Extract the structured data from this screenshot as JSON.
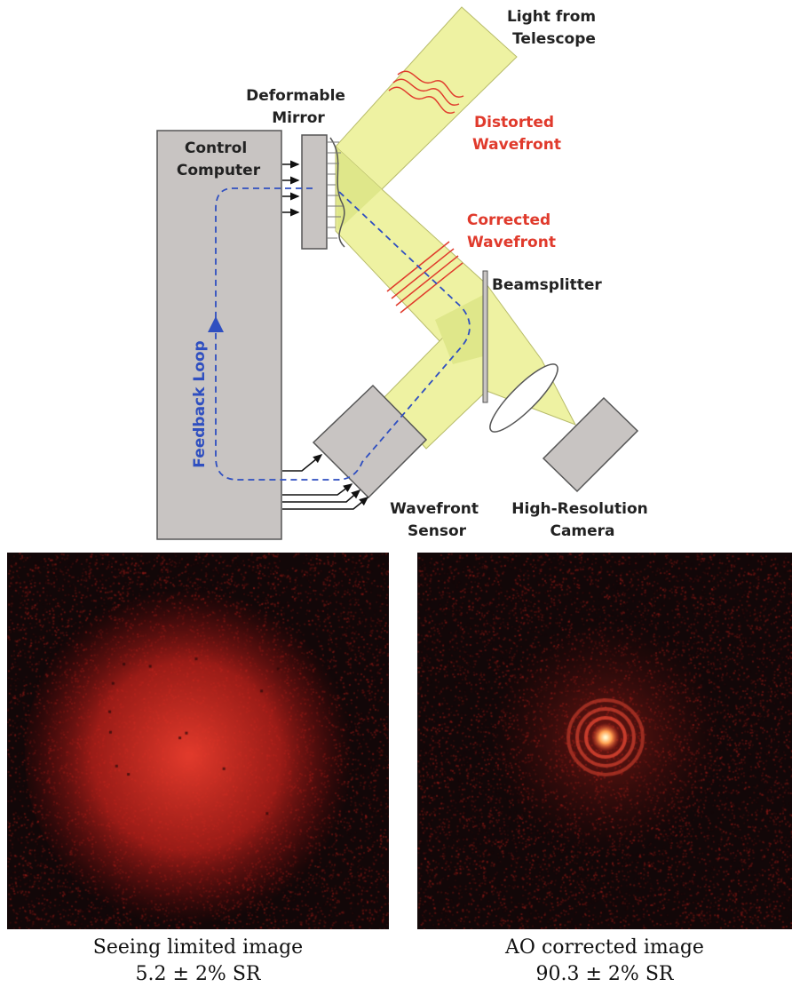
{
  "diagram": {
    "labels": {
      "light_from_telescope": [
        "Light from",
        "Telescope"
      ],
      "deformable_mirror": [
        "Deformable",
        "Mirror"
      ],
      "distorted_wavefront": [
        "Distorted",
        "Wavefront"
      ],
      "control_computer": [
        "Control",
        "Computer"
      ],
      "corrected_wavefront": [
        "Corrected",
        "Wavefront"
      ],
      "beamsplitter": "Beamsplitter",
      "feedback_loop": "Feedback Loop",
      "wavefront_sensor": [
        "Wavefront",
        "Sensor"
      ],
      "high_resolution_camera": [
        "High-Resolution",
        "Camera"
      ]
    },
    "colors": {
      "beam": "#eef2a2",
      "beam_overlap": "#dfe78a",
      "hardware": "#c8c4c2",
      "wavefront_red": "#e03a2c",
      "feedback_blue": "#2f4fc0"
    }
  },
  "images": {
    "left": {
      "caption_line1": "Seeing limited image",
      "caption_line2": "5.2 ± 2% SR"
    },
    "right": {
      "caption_line1": "AO corrected image",
      "caption_line2": "90.3 ± 2% SR"
    }
  }
}
